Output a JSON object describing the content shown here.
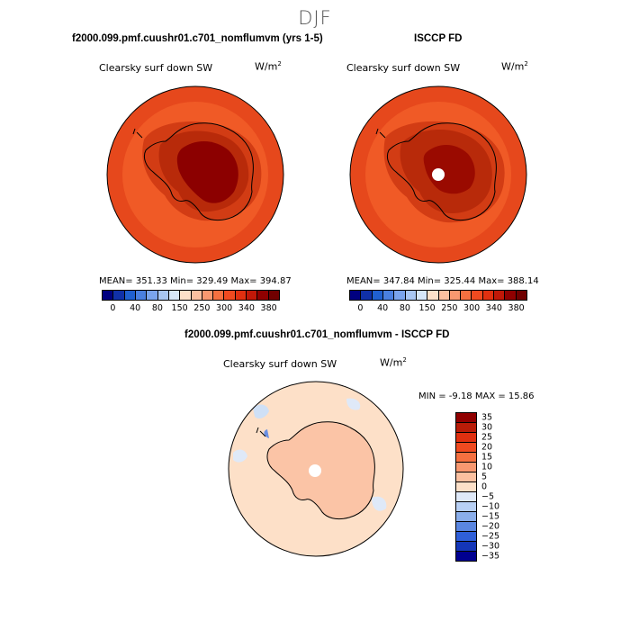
{
  "season": "DJF",
  "panels": [
    {
      "title": "f2000.099.pmf.cuushr01.c701_nomflumvm (yrs 1-5)",
      "variable": "Clearsky surf down SW",
      "units_base": "W/m",
      "units_exp": "2",
      "stats": "MEAN= 351.33   Min= 329.49   Max= 394.87",
      "ticks": [
        "0",
        "40",
        "80",
        "150",
        "250",
        "300",
        "340",
        "380"
      ]
    },
    {
      "title": "ISCCP FD",
      "variable": "Clearsky surf down SW",
      "units_base": "W/m",
      "units_exp": "2",
      "stats": "MEAN= 347.84   Min= 325.44   Max= 388.14",
      "ticks": [
        "0",
        "40",
        "80",
        "150",
        "250",
        "300",
        "340",
        "380"
      ]
    }
  ],
  "diff": {
    "title": "f2000.099.pmf.cuushr01.c701_nomflumvm - ISCCP FD",
    "variable": "Clearsky surf down SW",
    "units_base": "W/m",
    "units_exp": "2",
    "stats": "MIN =   -9.18 MAX =   15.86",
    "levels": [
      "35",
      "30",
      "25",
      "20",
      "15",
      "10",
      "5",
      "0",
      "−5",
      "−10",
      "−15",
      "−20",
      "−25",
      "−30",
      "−35"
    ]
  },
  "colors": {
    "abs_scale": [
      "#000080",
      "#1030a8",
      "#2060d0",
      "#4a80e0",
      "#7aa4ec",
      "#a8c6f2",
      "#d6e6f8",
      "#fde0c8",
      "#fbc0a0",
      "#f89870",
      "#f57040",
      "#f04a20",
      "#e03010",
      "#c01808",
      "#900000",
      "#700000"
    ],
    "diff_scale": [
      "#900000",
      "#b81c08",
      "#e03010",
      "#f04a20",
      "#f57040",
      "#f89870",
      "#fbc0a0",
      "#fde0c8",
      "#dfe9f8",
      "#b8d0f4",
      "#8aaeea",
      "#5a86e0",
      "#2f5fd8",
      "#1436b8",
      "#000090"
    ]
  }
}
